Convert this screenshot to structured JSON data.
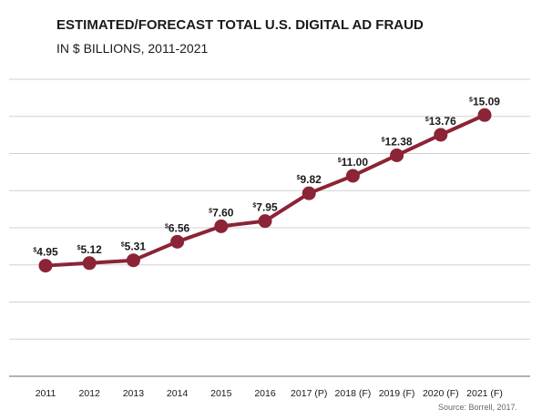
{
  "header": {
    "title": "ESTIMATED/FORECAST TOTAL U.S. DIGITAL AD FRAUD",
    "subtitle": "IN $ BILLIONS, 2011-2021"
  },
  "source": "Source: Borrell, 2017.",
  "colors": {
    "line": "#8b2436",
    "grid": "#d0d0d0",
    "axis": "#9a9a9a",
    "text": "#1a1a1a"
  },
  "chart_data": {
    "type": "line",
    "title": "ESTIMATED/FORECAST TOTAL U.S. DIGITAL AD FRAUD",
    "subtitle": "IN $ BILLIONS, 2011-2021",
    "categories": [
      "2011",
      "2012",
      "2013",
      "2014",
      "2015",
      "2016",
      "2017 (P)",
      "2018 (F)",
      "2019 (F)",
      "2020 (F)",
      "2021 (F)"
    ],
    "values": [
      4.95,
      5.12,
      5.31,
      6.56,
      7.6,
      7.95,
      9.82,
      11.0,
      12.38,
      13.76,
      15.09
    ],
    "data_labels": [
      "4.95",
      "5.12",
      "5.31",
      "6.56",
      "7.60",
      "7.95",
      "9.82",
      "11.00",
      "12.38",
      "13.76",
      "15.09"
    ],
    "label_prefix": "$",
    "ylim": [
      -2.5,
      17.5
    ],
    "gridlines": [
      -2.5,
      0,
      2.5,
      5,
      7.5,
      10,
      12.5,
      15,
      17.5
    ],
    "grid": true,
    "xlabel": "",
    "ylabel": ""
  }
}
